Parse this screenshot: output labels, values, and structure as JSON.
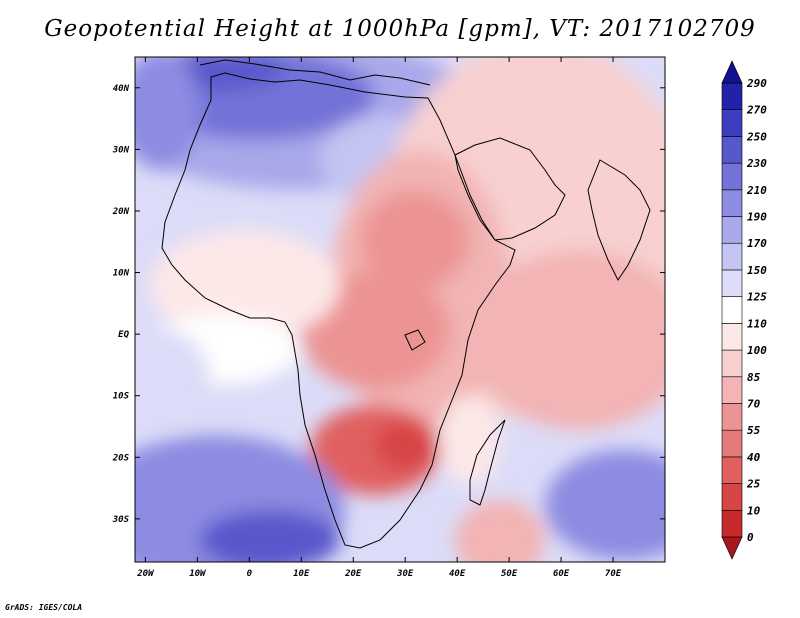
{
  "title": "Geopotential Height at 1000hPa [gpm], VT: 2017102709",
  "credit": "GrADS: IGES/COLA",
  "map": {
    "variable": "Geopotential Height",
    "level": "1000hPa",
    "units": "gpm",
    "valid_time": "2017102709",
    "lon_range": [
      -22,
      80
    ],
    "lat_range": [
      -37,
      45
    ],
    "lon_ticks": [
      {
        "value": -20,
        "label": "20W"
      },
      {
        "value": -10,
        "label": "10W"
      },
      {
        "value": 0,
        "label": "0"
      },
      {
        "value": 10,
        "label": "10E"
      },
      {
        "value": 20,
        "label": "20E"
      },
      {
        "value": 30,
        "label": "30E"
      },
      {
        "value": 40,
        "label": "40E"
      },
      {
        "value": 50,
        "label": "50E"
      },
      {
        "value": 60,
        "label": "60E"
      },
      {
        "value": 70,
        "label": "70E"
      }
    ],
    "lat_ticks": [
      {
        "value": 40,
        "label": "40N"
      },
      {
        "value": 30,
        "label": "30N"
      },
      {
        "value": 20,
        "label": "20N"
      },
      {
        "value": 10,
        "label": "10N"
      },
      {
        "value": 0,
        "label": "EQ"
      },
      {
        "value": -10,
        "label": "10S"
      },
      {
        "value": -20,
        "label": "20S"
      },
      {
        "value": -30,
        "label": "30S"
      }
    ]
  },
  "colorbar": {
    "levels": [
      "0",
      "10",
      "25",
      "40",
      "55",
      "70",
      "85",
      "100",
      "110",
      "125",
      "150",
      "170",
      "190",
      "210",
      "230",
      "250",
      "270",
      "290"
    ],
    "colors": [
      "#a8171c",
      "#c72a2a",
      "#d84545",
      "#e06060",
      "#e57a7a",
      "#ec9494",
      "#f2b4b4",
      "#f8d0d0",
      "#fde8e8",
      "#ffffff",
      "#dcdcf8",
      "#c4c4f2",
      "#a8a8ea",
      "#8c8ce2",
      "#7272d8",
      "#5858cc",
      "#3e3ec0",
      "#2222a8",
      "#12128e"
    ]
  },
  "colors": {
    "coast": "#000000",
    "frame": "#000000"
  }
}
